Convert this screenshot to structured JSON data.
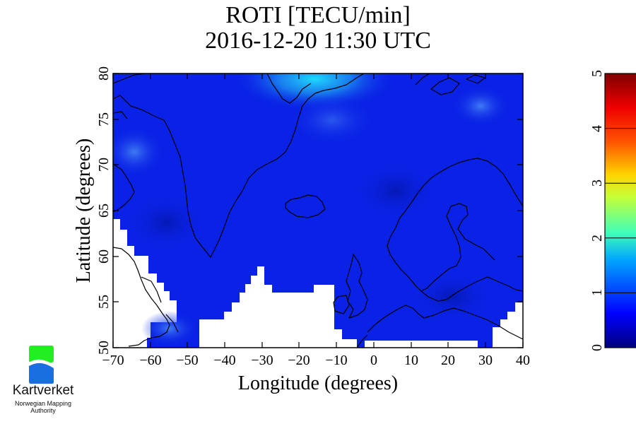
{
  "title_line1": "ROTI [TECU/min]",
  "title_line2": "2016-12-20 11:30 UTC",
  "map": {
    "x_label": "Longitude (degrees)",
    "y_label": "Latitude (degrees)",
    "x_ticks": [
      "−70",
      "−60",
      "−50",
      "−40",
      "−30",
      "−20",
      "−10",
      "0",
      "10",
      "20",
      "30",
      "40"
    ],
    "y_ticks": [
      "50",
      "55",
      "60",
      "65",
      "70",
      "75",
      "80"
    ],
    "lon_range": [
      -70,
      40
    ],
    "lat_range": [
      50,
      80
    ],
    "base_color": "#0a22e6",
    "max_roti_near_lon": -12,
    "max_roti_near_lat": 79.5
  },
  "colorbar": {
    "ticks": [
      "0",
      "1",
      "2",
      "3",
      "4",
      "5"
    ],
    "range": [
      0,
      5
    ],
    "colors": [
      "#00007f",
      "#0000ff",
      "#00a5ff",
      "#40ffb8",
      "#c6ff38",
      "#ffd400",
      "#ff5500",
      "#ee0000",
      "#7f0000"
    ]
  },
  "logo": {
    "name": "Kartverket",
    "subtitle_line1": "Norwegian Mapping",
    "subtitle_line2": "Authority",
    "green": "#22ee22",
    "blue": "#1a6fe0"
  }
}
